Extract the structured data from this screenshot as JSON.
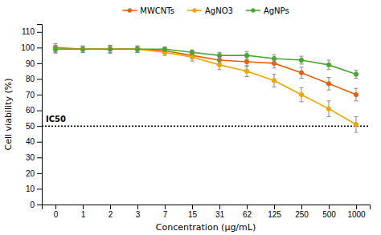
{
  "chart_data": {
    "type": "line",
    "xlabel": "Concentration (μg/mL)",
    "ylabel": "Cell viability (%)",
    "categories": [
      "0",
      "1",
      "2",
      "3",
      "7",
      "15",
      "31",
      "62",
      "125",
      "250",
      "500",
      "1000"
    ],
    "series": [
      {
        "name": "MWCNTs",
        "color": "#E8610A",
        "marker": "circle",
        "line_style": "solid",
        "values": [
          100,
          99,
          99,
          99,
          98,
          95,
          92,
          91,
          90,
          84,
          77,
          70
        ],
        "errors": [
          2.5,
          2.0,
          2.5,
          2.0,
          2.0,
          2.0,
          2.5,
          3.0,
          3.0,
          3.5,
          4.0,
          4.0
        ]
      },
      {
        "name": "AgNO3",
        "color": "#F0A500",
        "marker": "circle",
        "line_style": "solid",
        "values": [
          99,
          99,
          99,
          99,
          97,
          94,
          89,
          85,
          79,
          70,
          61,
          51
        ],
        "errors": [
          2.5,
          2.0,
          2.5,
          2.0,
          2.0,
          2.5,
          3.0,
          3.5,
          4.0,
          4.5,
          5.0,
          5.0
        ]
      },
      {
        "name": "AgNPs",
        "color": "#4AA832",
        "marker": "circle",
        "line_style": "solid",
        "values": [
          99,
          99,
          99,
          99,
          99,
          97,
          95,
          95,
          93,
          92,
          89,
          83
        ],
        "errors": [
          2.0,
          2.0,
          2.0,
          2.0,
          1.5,
          1.5,
          2.0,
          2.5,
          2.5,
          2.5,
          3.0,
          2.5
        ]
      }
    ],
    "annotations": [
      {
        "text": "IC50",
        "y": 50,
        "line_style": "dotted"
      }
    ],
    "ylim": [
      0,
      115
    ],
    "yticks": [
      0,
      10,
      20,
      30,
      40,
      50,
      60,
      70,
      80,
      90,
      100,
      110
    ],
    "grid": false,
    "legend": "top"
  }
}
